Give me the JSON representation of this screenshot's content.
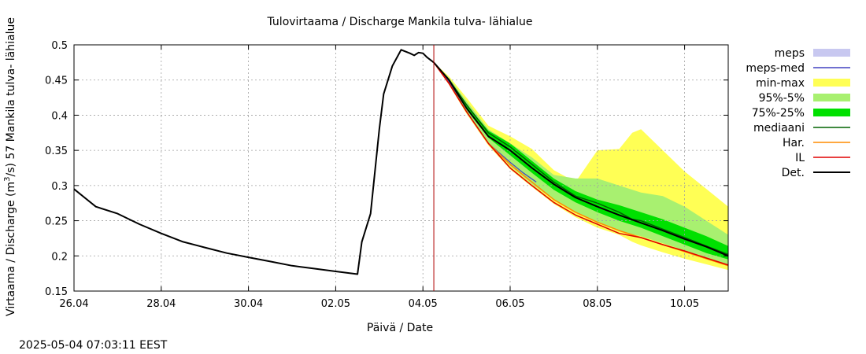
{
  "timestamp": "2025-05-04 07:03:11 EEST",
  "chart_data": {
    "type": "line",
    "title": "Tulovirtaama / Discharge  Mankila tulva- lähialue",
    "xlabel": "Päivä / Date",
    "ylabel_main": "Virtaama / Discharge (m",
    "ylabel_sup": "3",
    "ylabel_tail": "/s)  57 Mankila tulva- lähialue",
    "xlim": [
      0,
      15
    ],
    "ylim": [
      0.15,
      0.5
    ],
    "x_ticks": [
      {
        "x": 0,
        "label": "26.04"
      },
      {
        "x": 2,
        "label": "28.04"
      },
      {
        "x": 4,
        "label": "30.04"
      },
      {
        "x": 6,
        "label": "02.05"
      },
      {
        "x": 8,
        "label": "04.05"
      },
      {
        "x": 10,
        "label": "06.05"
      },
      {
        "x": 12,
        "label": "08.05"
      },
      {
        "x": 14,
        "label": "10.05"
      }
    ],
    "y_ticks": [
      0.15,
      0.2,
      0.25,
      0.3,
      0.35,
      0.4,
      0.45,
      0.5
    ],
    "grid": true,
    "forecast_start_x": 8.25,
    "legend": [
      {
        "key": "meps",
        "label": "meps",
        "color": "#c8c8f0",
        "style": "box"
      },
      {
        "key": "meps_med",
        "label": "meps-med",
        "color": "#4040c0",
        "style": "line"
      },
      {
        "key": "minmax",
        "label": "min-max",
        "color": "#ffff55",
        "style": "box"
      },
      {
        "key": "p95_5",
        "label": "95%-5%",
        "color": "#a8f070",
        "style": "box"
      },
      {
        "key": "p75_25",
        "label": "75%-25%",
        "color": "#00e000",
        "style": "box"
      },
      {
        "key": "median",
        "label": "mediaani",
        "color": "#006400",
        "style": "line"
      },
      {
        "key": "har",
        "label": "Har.",
        "color": "#ff8c00",
        "style": "line"
      },
      {
        "key": "il",
        "label": "IL",
        "color": "#e00000",
        "style": "line"
      },
      {
        "key": "det",
        "label": "Det.",
        "color": "#000000",
        "style": "line"
      }
    ],
    "series": [
      {
        "key": "det_obs",
        "name": "Det.",
        "color": "#000000",
        "x": [
          0,
          0.5,
          1,
          1.5,
          2,
          2.5,
          3,
          3.5,
          4,
          4.5,
          5,
          5.5,
          6,
          6.5,
          6.6,
          6.8,
          7.0,
          7.1,
          7.3,
          7.5,
          7.7,
          7.8,
          7.9,
          8.0,
          8.1,
          8.25
        ],
        "y": [
          0.295,
          0.27,
          0.26,
          0.245,
          0.232,
          0.22,
          0.212,
          0.204,
          0.198,
          0.192,
          0.186,
          0.182,
          0.178,
          0.174,
          0.22,
          0.26,
          0.38,
          0.43,
          0.47,
          0.493,
          0.488,
          0.485,
          0.489,
          0.488,
          0.482,
          0.475
        ]
      },
      {
        "key": "det_fc",
        "name": "Det.",
        "color": "#000000",
        "x": [
          8.25,
          8.6,
          9,
          9.5,
          10,
          10.5,
          11,
          11.5,
          12,
          12.5,
          13,
          13.5,
          14,
          14.5,
          15
        ],
        "y": [
          0.475,
          0.45,
          0.41,
          0.37,
          0.35,
          0.325,
          0.302,
          0.283,
          0.27,
          0.258,
          0.247,
          0.236,
          0.224,
          0.213,
          0.2
        ]
      },
      {
        "key": "median",
        "name": "mediaani",
        "color": "#006400",
        "x": [
          8.25,
          8.6,
          9,
          9.5,
          10,
          10.5,
          11,
          11.5,
          12,
          12.5,
          12.8,
          13,
          13.5,
          14,
          14.5,
          15
        ],
        "y": [
          0.475,
          0.45,
          0.415,
          0.375,
          0.355,
          0.33,
          0.305,
          0.285,
          0.275,
          0.262,
          0.252,
          0.25,
          0.238,
          0.226,
          0.214,
          0.202
        ]
      },
      {
        "key": "har",
        "name": "Har.",
        "color": "#ff8c00",
        "x": [
          8.25,
          8.6,
          9,
          9.5,
          10,
          10.5,
          11,
          11.5,
          12,
          12.5,
          13,
          13.5,
          14,
          14.5,
          15
        ],
        "y": [
          0.475,
          0.445,
          0.405,
          0.36,
          0.33,
          0.305,
          0.28,
          0.262,
          0.248,
          0.236,
          0.226,
          0.216,
          0.206,
          0.196,
          0.186
        ]
      },
      {
        "key": "il",
        "name": "IL",
        "color": "#e00000",
        "x": [
          8.25,
          8.6,
          9,
          9.5,
          10,
          10.5,
          11,
          11.5,
          12,
          12.5,
          13,
          13.5,
          14,
          14.5,
          15
        ],
        "y": [
          0.475,
          0.445,
          0.405,
          0.36,
          0.325,
          0.3,
          0.276,
          0.258,
          0.245,
          0.232,
          0.226,
          0.216,
          0.207,
          0.197,
          0.187
        ]
      },
      {
        "key": "meps_med",
        "name": "meps-med",
        "color": "#4040c0",
        "x": [
          8.25,
          8.6,
          9,
          9.5,
          10,
          10.3,
          10.6
        ],
        "y": [
          0.475,
          0.447,
          0.405,
          0.36,
          0.333,
          0.318,
          0.305
        ]
      }
    ],
    "bands": [
      {
        "key": "minmax",
        "name": "min-max",
        "color": "#ffff55",
        "x": [
          8.25,
          8.6,
          9,
          9.5,
          10,
          10.5,
          11,
          11.5,
          12,
          12.5,
          12.8,
          13,
          13.5,
          14,
          14.5,
          15
        ],
        "upper": [
          0.475,
          0.455,
          0.425,
          0.385,
          0.37,
          0.352,
          0.322,
          0.305,
          0.35,
          0.352,
          0.375,
          0.38,
          0.35,
          0.32,
          0.295,
          0.27
        ],
        "lower": [
          0.475,
          0.443,
          0.402,
          0.357,
          0.323,
          0.298,
          0.274,
          0.255,
          0.24,
          0.23,
          0.22,
          0.215,
          0.205,
          0.196,
          0.188,
          0.18
        ]
      },
      {
        "key": "p95_5",
        "name": "95%-5%",
        "color": "#a8f070",
        "x": [
          8.25,
          8.6,
          9,
          9.5,
          10,
          10.5,
          11,
          11.5,
          12,
          12.5,
          13,
          13.5,
          14,
          14.5,
          15
        ],
        "upper": [
          0.475,
          0.453,
          0.42,
          0.38,
          0.36,
          0.34,
          0.315,
          0.31,
          0.31,
          0.3,
          0.29,
          0.285,
          0.27,
          0.25,
          0.23
        ],
        "lower": [
          0.475,
          0.445,
          0.405,
          0.36,
          0.328,
          0.302,
          0.28,
          0.262,
          0.248,
          0.235,
          0.228,
          0.218,
          0.208,
          0.198,
          0.188
        ]
      },
      {
        "key": "p75_25",
        "name": "75%-25%",
        "color": "#00e000",
        "x": [
          8.25,
          8.6,
          9,
          9.5,
          10,
          10.5,
          11,
          11.5,
          12,
          12.5,
          13,
          13.5,
          14,
          14.5,
          15
        ],
        "upper": [
          0.475,
          0.45,
          0.415,
          0.378,
          0.36,
          0.335,
          0.31,
          0.292,
          0.28,
          0.272,
          0.262,
          0.252,
          0.24,
          0.228,
          0.214
        ],
        "lower": [
          0.475,
          0.447,
          0.408,
          0.368,
          0.343,
          0.318,
          0.294,
          0.276,
          0.262,
          0.25,
          0.24,
          0.228,
          0.216,
          0.204,
          0.195
        ]
      }
    ]
  }
}
